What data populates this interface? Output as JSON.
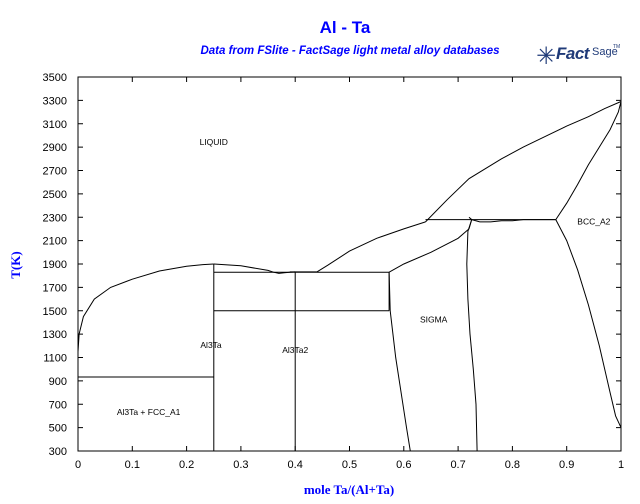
{
  "chart_data": {
    "type": "line",
    "title": "Al - Ta",
    "subtitle": "Data from FSlite - FactSage light metal alloy databases",
    "xlabel": "mole Ta/(Al+Ta)",
    "ylabel": "T(K)",
    "xlim": [
      0,
      1
    ],
    "ylim": [
      300,
      3500
    ],
    "xticks": [
      "0",
      "0.1",
      "0.2",
      "0.3",
      "0.4",
      "0.5",
      "0.6",
      "0.7",
      "0.8",
      "0.9",
      "1"
    ],
    "yticks": [
      "300",
      "500",
      "700",
      "900",
      "1100",
      "1300",
      "1500",
      "1700",
      "1900",
      "2100",
      "2300",
      "2500",
      "2700",
      "2900",
      "3100",
      "3300",
      "3500"
    ],
    "grid": false,
    "series": [
      {
        "x": [
          0,
          0.002,
          0.01,
          0.03,
          0.06,
          0.1,
          0.15,
          0.2,
          0.23,
          0.25
        ],
        "y": [
          1150,
          1300,
          1450,
          1600,
          1700,
          1770,
          1840,
          1880,
          1895,
          1900
        ]
      },
      {
        "x": [
          0.25,
          0.3,
          0.35,
          0.36,
          0.37,
          0.38,
          0.39,
          0.4
        ],
        "y": [
          1900,
          1885,
          1845,
          1830,
          1820,
          1825,
          1830,
          1832
        ]
      },
      {
        "x": [
          0.39,
          0.44
        ],
        "y": [
          1832,
          1832
        ]
      },
      {
        "x": [
          0.44,
          0.46,
          0.5,
          0.55,
          0.6,
          0.64
        ],
        "y": [
          1832,
          1890,
          2010,
          2120,
          2200,
          2260
        ]
      },
      {
        "x": [
          0.64,
          0.68,
          0.72,
          0.78,
          0.82,
          0.86,
          0.9,
          0.94,
          0.97,
          1.0
        ],
        "y": [
          2260,
          2450,
          2630,
          2800,
          2900,
          2990,
          3080,
          3160,
          3230,
          3290
        ]
      },
      {
        "x": [
          0.64,
          0.88
        ],
        "y": [
          2280,
          2280
        ]
      },
      {
        "x": [
          1.0,
          0.995,
          0.98,
          0.96,
          0.94,
          0.92,
          0.9,
          0.88
        ],
        "y": [
          3290,
          3200,
          3050,
          2900,
          2750,
          2580,
          2420,
          2280
        ]
      },
      {
        "x": [
          0.573,
          0.6,
          0.65,
          0.7,
          0.72,
          0.725,
          0.72
        ],
        "y": [
          1830,
          1900,
          2000,
          2120,
          2200,
          2280,
          2300
        ]
      },
      {
        "x": [
          0.725,
          0.718,
          0.716,
          0.718,
          0.722,
          0.728,
          0.733,
          0.735
        ],
        "y": [
          2280,
          2180,
          1900,
          1600,
          1300,
          1000,
          700,
          300
        ]
      },
      {
        "x": [
          0.725,
          0.74,
          0.76,
          0.78,
          0.8,
          0.82,
          0.84,
          0.86,
          0.88
        ],
        "y": [
          2280,
          2260,
          2260,
          2270,
          2270,
          2280,
          2280,
          2280,
          2280
        ]
      },
      {
        "x": [
          0.88,
          0.9,
          0.92,
          0.94,
          0.96,
          0.98,
          0.99,
          1.0
        ],
        "y": [
          2280,
          2100,
          1850,
          1550,
          1200,
          800,
          600,
          500
        ]
      },
      {
        "x": [
          0.573,
          0.575,
          0.585,
          0.595,
          0.605,
          0.612
        ],
        "y": [
          1830,
          1500,
          1100,
          800,
          500,
          300
        ]
      },
      {
        "x": [
          0.25,
          0.573
        ],
        "y": [
          1830,
          1830
        ]
      },
      {
        "x": [
          0.25,
          0.573
        ],
        "y": [
          1500,
          1500
        ]
      },
      {
        "x": [
          0.573,
          0.573
        ],
        "y": [
          1500,
          1830
        ]
      },
      {
        "x": [
          0.25,
          0.25
        ],
        "y": [
          300,
          1900
        ]
      },
      {
        "x": [
          0,
          0.25
        ],
        "y": [
          933,
          933
        ]
      },
      {
        "x": [
          0.4,
          0.4
        ],
        "y": [
          300,
          1832
        ]
      }
    ],
    "annotations": [
      {
        "text": "LIQUID",
        "x": 0.25,
        "y": 2920
      },
      {
        "text": "BCC_A2",
        "x": 0.95,
        "y": 2240
      },
      {
        "text": "SIGMA",
        "x": 0.655,
        "y": 1400
      },
      {
        "text": "Al3Ta",
        "x": 0.245,
        "y": 1180
      },
      {
        "text": "Al3Ta2",
        "x": 0.4,
        "y": 1140
      },
      {
        "text": "Al3Ta + FCC_A1",
        "x": 0.13,
        "y": 610
      }
    ]
  },
  "logo": {
    "mark": "✳",
    "fact": "Fact",
    "sage": "Sage",
    "tm": "TM"
  }
}
